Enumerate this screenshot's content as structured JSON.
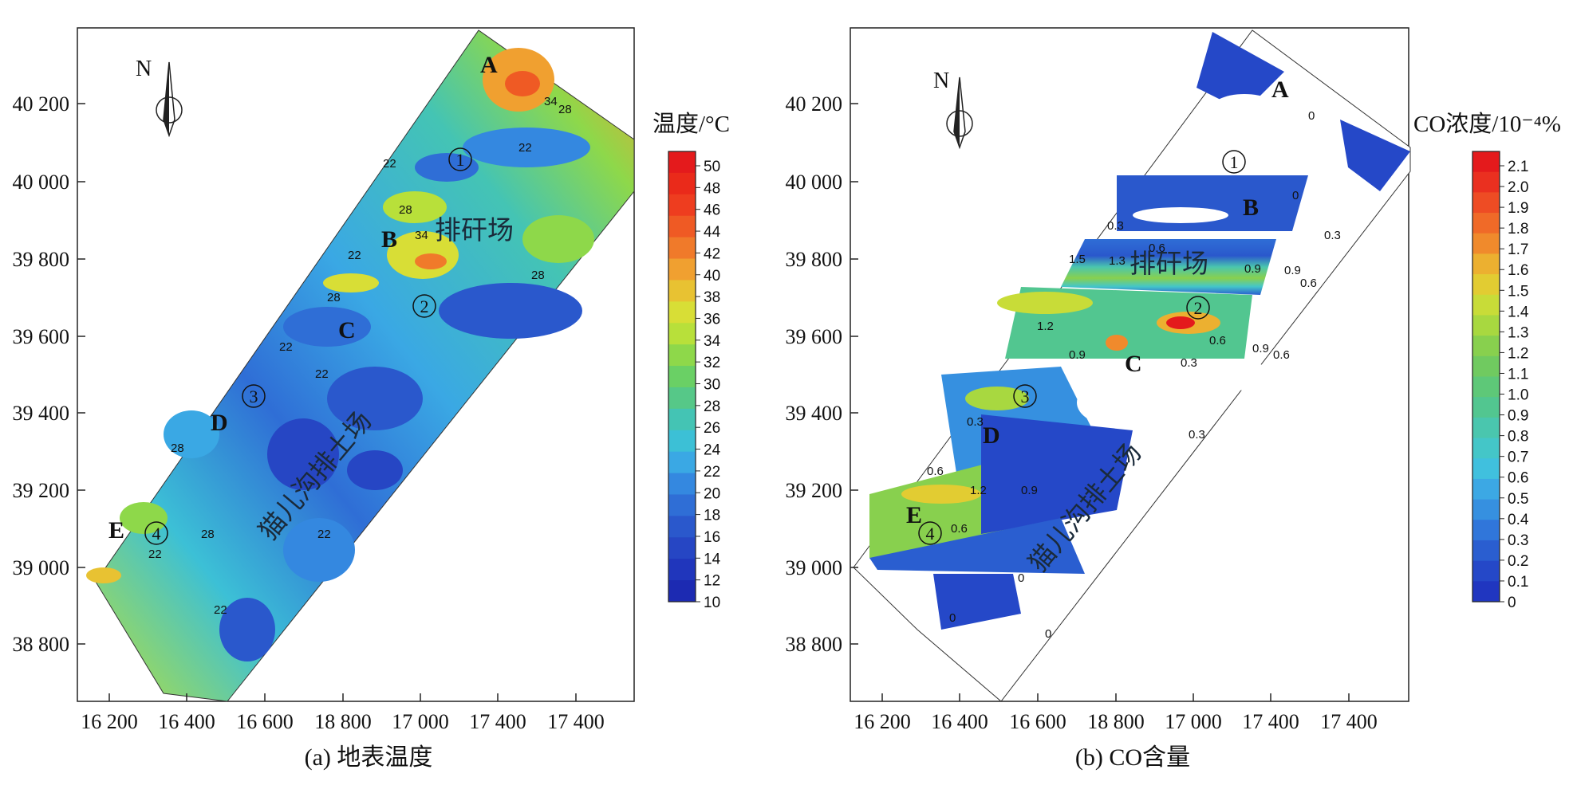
{
  "panels": [
    {
      "caption": "(a) 地表温度",
      "y_ticks": [
        "40 200",
        "40 000",
        "39 800",
        "39 600",
        "39 400",
        "39 200",
        "39 000",
        "38 800"
      ],
      "x_ticks": [
        "16 200",
        "16 400",
        "16 600",
        "18 800",
        "17 000",
        "17 400",
        "17 400"
      ],
      "north": "N",
      "colorbar": {
        "title": "温度/°C",
        "labels": [
          "50",
          "48",
          "46",
          "44",
          "42",
          "40",
          "38",
          "36",
          "34",
          "32",
          "30",
          "28",
          "26",
          "24",
          "22",
          "20",
          "18",
          "16",
          "14",
          "12",
          "10"
        ],
        "colors": [
          "#e41a1c",
          "#ea2a1a",
          "#ee3d1f",
          "#ef5a24",
          "#f07a2a",
          "#f0a030",
          "#e8c232",
          "#d8de36",
          "#b8e03a",
          "#8ed84a",
          "#6ad065",
          "#56c888",
          "#44c4b4",
          "#3cc0d6",
          "#3aa8e4",
          "#3488e0",
          "#2f6ed6",
          "#2a58cc",
          "#2646c4",
          "#2036bc",
          "#1c2ab2"
        ]
      },
      "site_labels": [
        "A",
        "B",
        "C",
        "D",
        "E"
      ],
      "circled": [
        "1",
        "2",
        "3",
        "4"
      ],
      "area_labels": [
        "排矸场",
        "猫儿沟排土场"
      ],
      "contour_labels": [
        "34",
        "28",
        "22",
        "22",
        "28",
        "34",
        "22",
        "28",
        "28",
        "22",
        "22",
        "28",
        "28",
        "22",
        "22",
        "22"
      ]
    },
    {
      "caption": "(b) CO含量",
      "y_ticks": [
        "40 200",
        "40 000",
        "39 800",
        "39 600",
        "39 400",
        "39 200",
        "39 000",
        "38 800"
      ],
      "x_ticks": [
        "16 200",
        "16 400",
        "16 600",
        "18 800",
        "17 000",
        "17 400",
        "17 400"
      ],
      "north": "N",
      "colorbar": {
        "title": "CO浓度/10⁻⁴%",
        "labels": [
          "2.1",
          "2.0",
          "1.9",
          "1.8",
          "1.7",
          "1.6",
          "1.5",
          "1.4",
          "1.3",
          "1.2",
          "1.1",
          "1.0",
          "0.9",
          "0.8",
          "0.7",
          "0.6",
          "0.5",
          "0.4",
          "0.3",
          "0.2",
          "0.1",
          "0"
        ],
        "colors": [
          "#e41a1c",
          "#ea3020",
          "#ee4c24",
          "#f06a28",
          "#f08a2c",
          "#ecb030",
          "#e2cc32",
          "#c8dc38",
          "#a8d840",
          "#88d04e",
          "#70ca60",
          "#5ec878",
          "#52c690",
          "#4ac6ae",
          "#44c6c8",
          "#40c0de",
          "#3ca8e4",
          "#3690e0",
          "#3076da",
          "#2a5ed0",
          "#2548c8",
          "#2036c0"
        ]
      },
      "site_labels": [
        "A",
        "B",
        "C",
        "D",
        "E"
      ],
      "circled": [
        "1",
        "2",
        "3",
        "4"
      ],
      "area_labels": [
        "排矸场",
        "猫儿沟排土场"
      ],
      "contour_labels": [
        "0",
        "0",
        "0.3",
        "0.6",
        "0.9",
        "1.5",
        "1.3",
        "0.9",
        "0.6",
        "0.3",
        "1.2",
        "0.9",
        "0.3",
        "0.6",
        "0.9",
        "0.6",
        "0.3",
        "0.6",
        "1.2",
        "0.9",
        "0.6",
        "0",
        "0",
        "0",
        "0.3"
      ]
    }
  ]
}
